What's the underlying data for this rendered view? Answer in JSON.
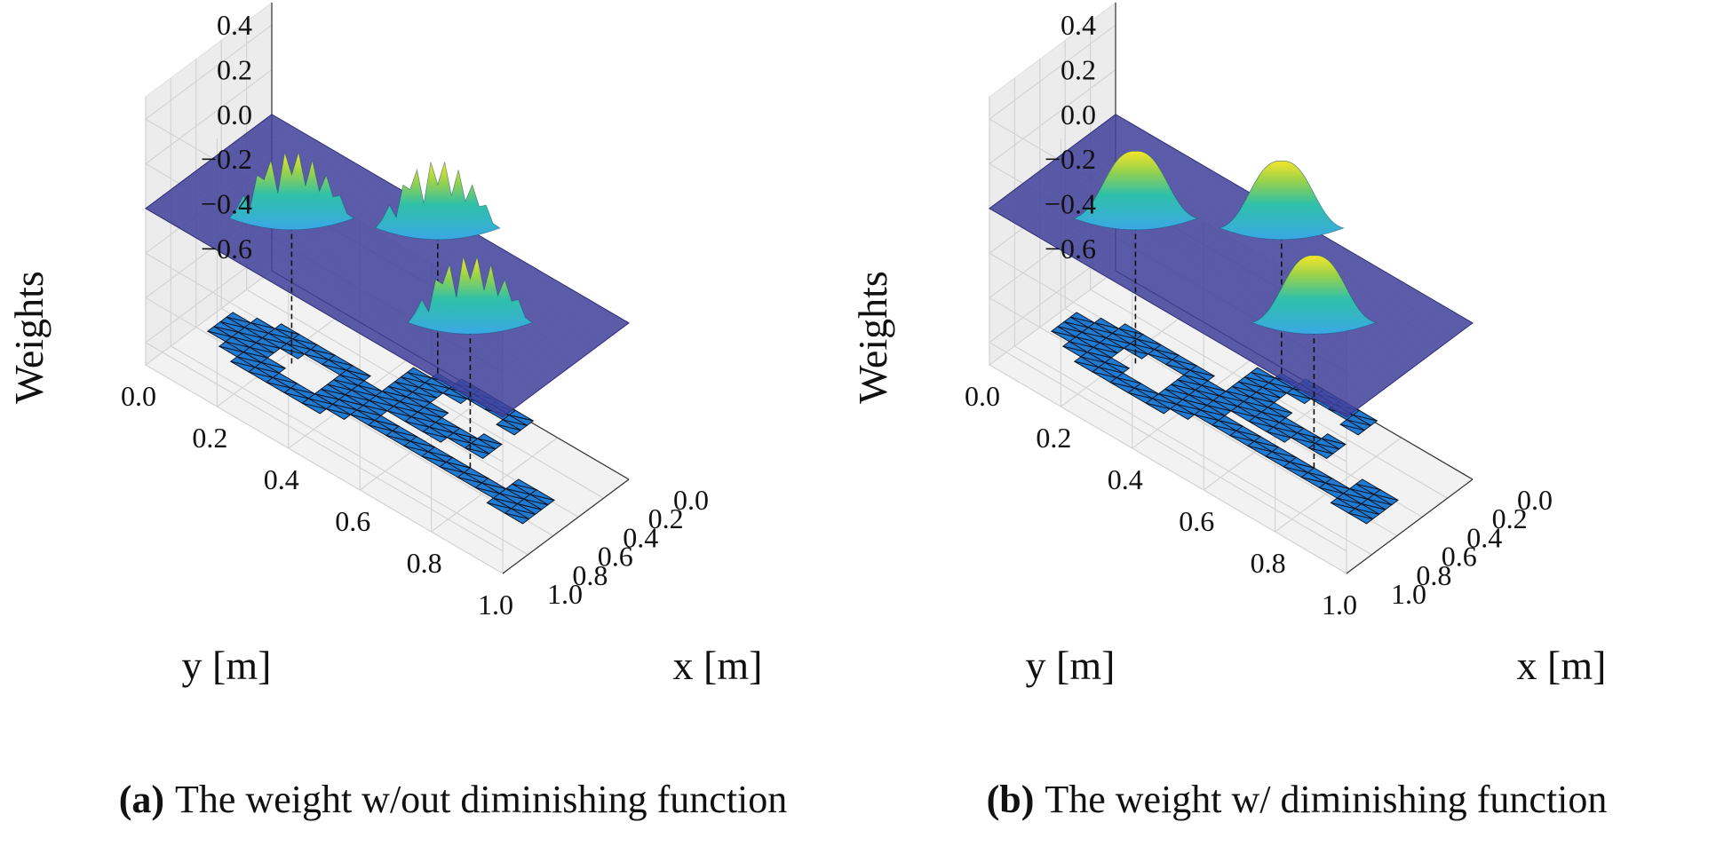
{
  "chart_data": [
    {
      "type": "surface3d",
      "panel_label": "(a)",
      "caption": "The weight w/out diminishing function",
      "xlabel": "x [m]",
      "ylabel": "y [m]",
      "zlabel": "Weights",
      "xticks": [
        "0.0",
        "0.2",
        "0.4",
        "0.6",
        "0.8",
        "1.0"
      ],
      "yticks": [
        "0.0",
        "0.2",
        "0.4",
        "0.6",
        "0.8",
        "1.0"
      ],
      "zticks": [
        "0.4",
        "0.2",
        "0.0",
        "−0.2",
        "−0.4",
        "−0.6"
      ],
      "xlim": [
        0,
        1
      ],
      "ylim": [
        0,
        1
      ],
      "zlim": [
        -0.7,
        0.5
      ],
      "surface_z": 0.0,
      "diminishing": false,
      "peaks": [
        {
          "x": 0.1,
          "y": 0.5,
          "height": 0.3
        },
        {
          "x": 0.55,
          "y": 0.25,
          "height": 0.3
        },
        {
          "x": 0.55,
          "y": 0.75,
          "height": 0.3
        }
      ],
      "mesh_z": -0.65,
      "grid": true
    },
    {
      "type": "surface3d",
      "panel_label": "(b)",
      "caption": "The weight w/ diminishing function",
      "xlabel": "x [m]",
      "ylabel": "y [m]",
      "zlabel": "Weights",
      "xticks": [
        "0.0",
        "0.2",
        "0.4",
        "0.6",
        "0.8",
        "1.0"
      ],
      "yticks": [
        "0.0",
        "0.2",
        "0.4",
        "0.6",
        "0.8",
        "1.0"
      ],
      "zticks": [
        "0.4",
        "0.2",
        "0.0",
        "−0.2",
        "−0.4",
        "−0.6"
      ],
      "xlim": [
        0,
        1
      ],
      "ylim": [
        0,
        1
      ],
      "zlim": [
        -0.7,
        0.5
      ],
      "surface_z": 0.0,
      "diminishing": true,
      "peaks": [
        {
          "x": 0.1,
          "y": 0.5,
          "height": 0.3
        },
        {
          "x": 0.55,
          "y": 0.25,
          "height": 0.3
        },
        {
          "x": 0.55,
          "y": 0.75,
          "height": 0.3
        }
      ],
      "mesh_z": -0.65,
      "grid": true
    }
  ]
}
